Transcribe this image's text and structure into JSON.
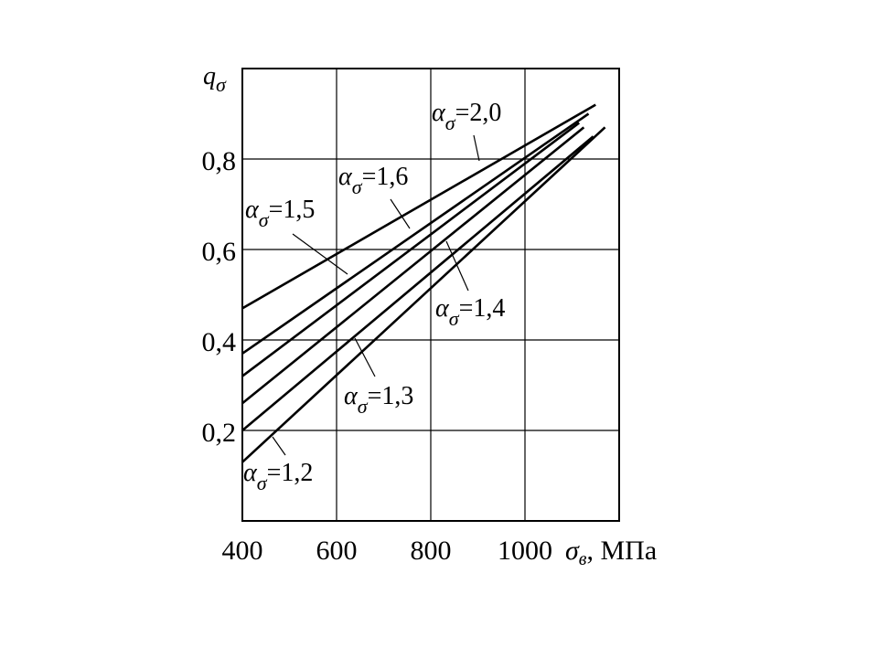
{
  "chart_data": {
    "type": "line",
    "xlabel": "σв, МПа",
    "ylabel": "qσ",
    "xlim": [
      400,
      1000
    ],
    "ylim": [
      0,
      0.9
    ],
    "x_ticks": [
      400,
      600,
      800,
      1000
    ],
    "x_tick_labels": [
      "400",
      "600",
      "800",
      "1000"
    ],
    "y_ticks": [
      0.2,
      0.4,
      0.6,
      0.8
    ],
    "y_tick_labels": [
      "0,2",
      "0,4",
      "0,6",
      "0,8"
    ],
    "grid": true,
    "series": [
      {
        "name": "ασ=2,0",
        "x": [
          400,
          1150
        ],
        "y": [
          0.47,
          0.92
        ]
      },
      {
        "name": "ασ=1,6",
        "x": [
          400,
          1135
        ],
        "y": [
          0.37,
          0.9
        ]
      },
      {
        "name": "ασ=1,5",
        "x": [
          400,
          1115
        ],
        "y": [
          0.32,
          0.88
        ]
      },
      {
        "name": "ασ=1,4",
        "x": [
          400,
          1125
        ],
        "y": [
          0.26,
          0.87
        ]
      },
      {
        "name": "ασ=1,3",
        "x": [
          400,
          1145
        ],
        "y": [
          0.2,
          0.85
        ]
      },
      {
        "name": "ασ=1,2",
        "x": [
          400,
          1170
        ],
        "y": [
          0.13,
          0.87
        ]
      }
    ]
  }
}
